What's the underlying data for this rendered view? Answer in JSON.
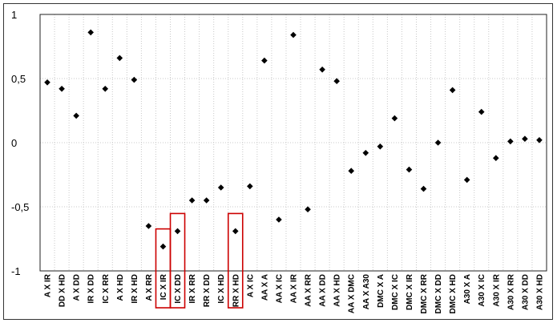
{
  "chart_data": {
    "type": "scatter",
    "title": "",
    "xlabel": "",
    "ylabel": "",
    "ylim": [
      -1,
      1
    ],
    "yticks": [
      1,
      0.5,
      0,
      -0.5,
      -1
    ],
    "ytick_labels": [
      "1",
      "0,5",
      "0",
      "-0,5",
      "-1"
    ],
    "grid": {
      "horizontal": true,
      "vertical": true,
      "style": "dotted"
    },
    "marker": "diamond",
    "marker_color": "#000000",
    "highlight_color": "#cc0000",
    "categories": [
      "A X IR",
      "DD X HD",
      "A X DD",
      "IR X DD",
      "IC X RR",
      "A X HD",
      "IR X HD",
      "A X RR",
      "IC X IR",
      "IC X DD",
      "IR X RR",
      "RR X DD",
      "IC X HD",
      "RR X HD",
      "A X IC",
      "AA X A",
      "AA X IC",
      "AA X IR",
      "AA X RR",
      "AA X DD",
      "AA X HD",
      "AA X DMC",
      "AA X A30",
      "DMC X A",
      "DMC X IC",
      "DMC X IR",
      "DMC X RR",
      "DMC X DD",
      "DMC X HD",
      "A30 X A",
      "A30 X IC",
      "A30 X IR",
      "A30 X RR",
      "A30 X DD",
      "A30 X HD"
    ],
    "values": [
      0.47,
      0.42,
      0.21,
      0.86,
      0.42,
      0.66,
      0.49,
      -0.65,
      -0.81,
      -0.69,
      -0.45,
      -0.45,
      -0.35,
      -0.69,
      -0.34,
      0.64,
      -0.6,
      0.84,
      -0.52,
      0.57,
      0.48,
      -0.22,
      -0.08,
      -0.03,
      0.19,
      -0.21,
      -0.36,
      0.0,
      0.41,
      -0.29,
      0.24,
      -0.12,
      0.01,
      0.03,
      0.02
    ],
    "highlighted": [
      "IC X IR",
      "IC X DD",
      "RR X HD"
    ]
  }
}
